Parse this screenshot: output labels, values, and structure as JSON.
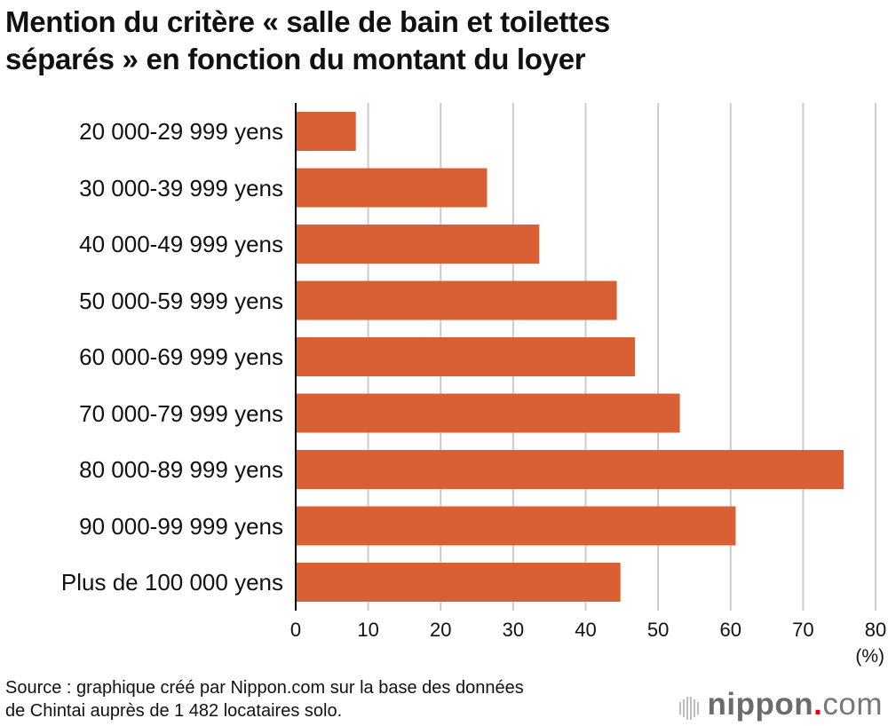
{
  "chart_data": {
    "type": "bar",
    "orientation": "horizontal",
    "title": "Mention du critère « salle de bain et toilettes séparés » en fonction du montant du loyer",
    "title_lines": [
      "Mention du critère « salle de bain et toilettes",
      "séparés » en fonction du montant du loyer"
    ],
    "categories": [
      "20 000-29 999 yens",
      "30 000-39 999 yens",
      "40 000-49 999 yens",
      "50 000-59 999 yens",
      "60 000-69 999 yens",
      "70 000-79 999 yens",
      "80 000-89 999 yens",
      "90 000-99 999 yens",
      "Plus de 100 000 yens"
    ],
    "values": [
      8.3,
      26.4,
      33.6,
      44.3,
      46.8,
      53.0,
      75.6,
      60.7,
      44.8
    ],
    "xlim": [
      0,
      80
    ],
    "xticks": [
      "0",
      "10",
      "20",
      "30",
      "40",
      "50",
      "60",
      "70",
      "80"
    ],
    "xlabel": "(%)",
    "grid": "vertical",
    "bar_color": "#d95f34",
    "grid_color": "#cccccc"
  },
  "source_lines": [
    "Source : graphique créé par Nippon.com sur la base des données",
    "de Chintai auprès de 1 482 locataires solo."
  ],
  "logo": {
    "text": "nippon.com"
  }
}
